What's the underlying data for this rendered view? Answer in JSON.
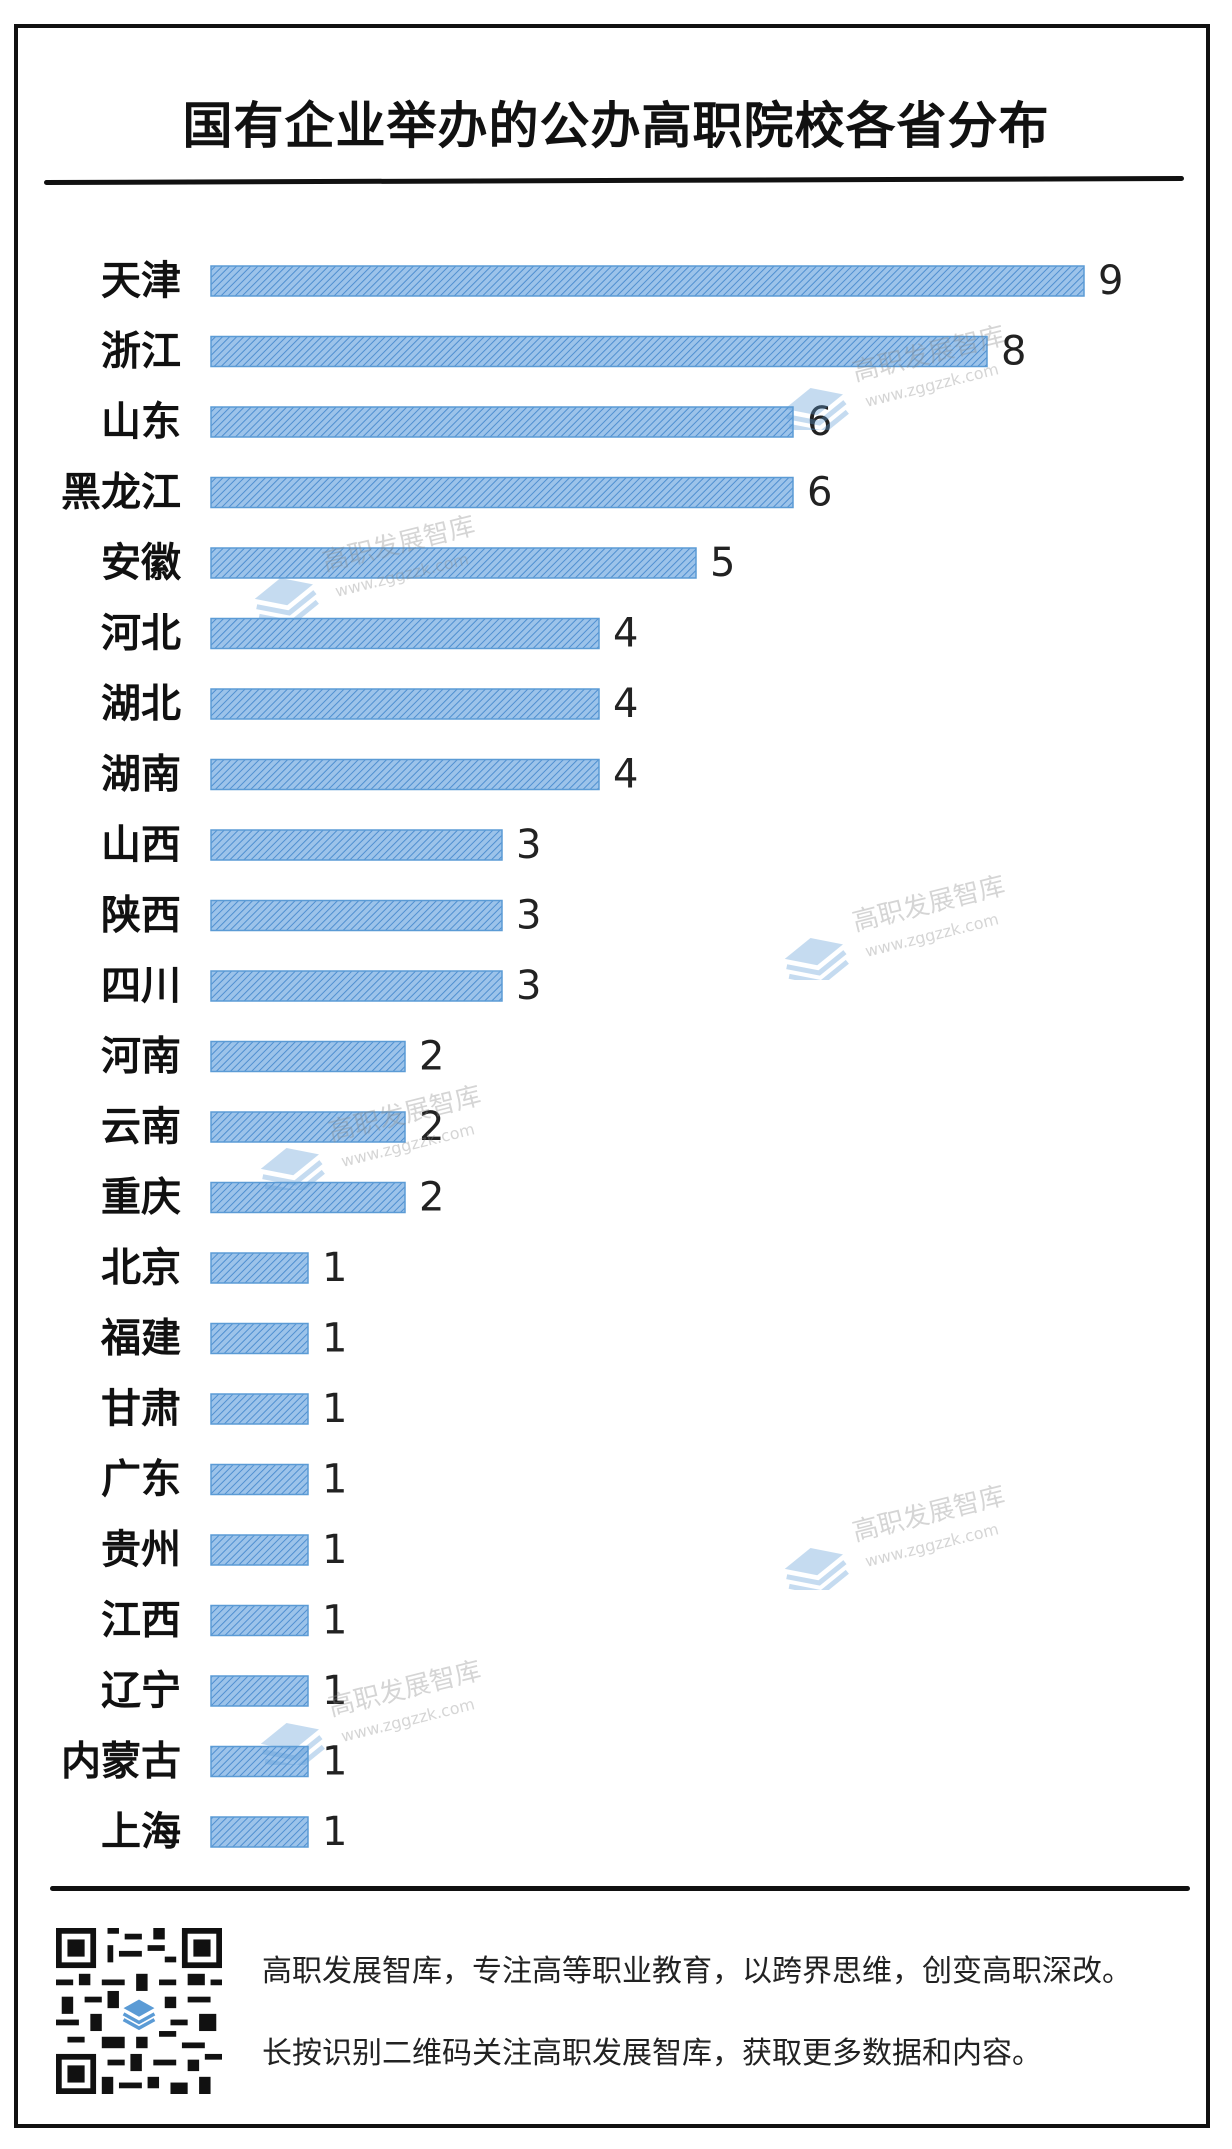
{
  "title": "国有企业举办的公办高职院校各省分布",
  "chart_data": {
    "type": "bar",
    "orientation": "horizontal",
    "categories": [
      "天津",
      "浙江",
      "山东",
      "黑龙江",
      "安徽",
      "河北",
      "湖北",
      "湖南",
      "山西",
      "陕西",
      "四川",
      "河南",
      "云南",
      "重庆",
      "北京",
      "福建",
      "甘肃",
      "广东",
      "贵州",
      "江西",
      "辽宁",
      "内蒙古",
      "上海"
    ],
    "values": [
      9,
      8,
      6,
      6,
      5,
      4,
      4,
      4,
      3,
      3,
      3,
      2,
      2,
      2,
      1,
      1,
      1,
      1,
      1,
      1,
      1,
      1,
      1
    ],
    "xlim": [
      0,
      9
    ],
    "grid": false,
    "bar_color": "#5b9bd5"
  },
  "footer": {
    "line1": "高职发展智库，专注高等职业教育，以跨界思维，创变高职深改。",
    "line2": "长按识别二维码关注高职发展智库，获取更多数据和内容。"
  },
  "watermark": {
    "name": "高职发展智库",
    "url": "www.zggzzk.com"
  }
}
